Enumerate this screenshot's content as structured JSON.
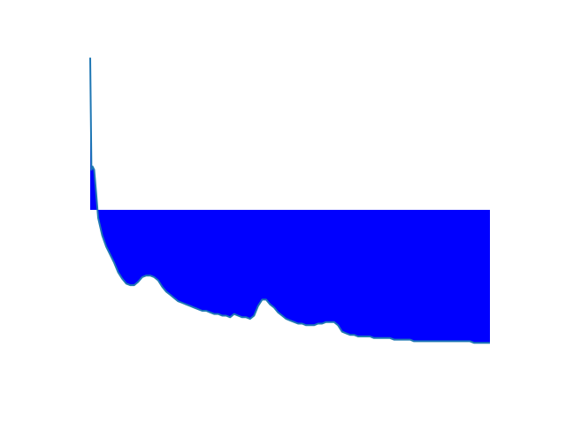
{
  "chart_data": {
    "type": "area",
    "title": "",
    "xlabel": "",
    "ylabel": "",
    "axes_visible": false,
    "grid": false,
    "legend": "none",
    "baseline": 0,
    "xlim": [
      0,
      100
    ],
    "ylim": [
      -1.0,
      1.0
    ],
    "fill_color": "#0000ff",
    "line_color": "#1f77b4",
    "x": [
      0,
      0.3,
      0.6,
      1,
      1.5,
      2,
      3,
      4,
      5,
      6,
      7,
      8,
      9,
      10,
      11,
      12,
      13,
      14,
      15,
      16,
      17,
      18,
      19,
      20,
      21,
      22,
      23,
      24,
      25,
      26,
      27,
      28,
      29,
      30,
      31,
      32,
      33,
      34,
      35,
      36,
      37,
      38,
      39,
      40,
      41,
      42,
      43,
      44,
      45,
      46,
      47,
      48,
      49,
      50,
      51,
      52,
      53,
      54,
      55,
      56,
      57,
      58,
      59,
      60,
      61,
      62,
      63,
      64,
      65,
      66,
      67,
      68,
      69,
      70,
      71,
      72,
      73,
      74,
      75,
      76,
      77,
      78,
      79,
      80,
      81,
      82,
      83,
      84,
      85,
      86,
      87,
      88,
      89,
      90,
      91,
      92,
      93,
      94,
      95,
      96,
      97,
      98,
      99,
      100
    ],
    "y": [
      0.95,
      0.25,
      0.27,
      0.25,
      0.1,
      -0.05,
      -0.16,
      -0.23,
      -0.28,
      -0.33,
      -0.39,
      -0.43,
      -0.46,
      -0.47,
      -0.47,
      -0.45,
      -0.42,
      -0.41,
      -0.41,
      -0.42,
      -0.44,
      -0.48,
      -0.51,
      -0.53,
      -0.55,
      -0.57,
      -0.58,
      -0.59,
      -0.6,
      -0.61,
      -0.62,
      -0.63,
      -0.63,
      -0.64,
      -0.65,
      -0.65,
      -0.66,
      -0.66,
      -0.67,
      -0.65,
      -0.66,
      -0.67,
      -0.67,
      -0.68,
      -0.66,
      -0.6,
      -0.56,
      -0.56,
      -0.59,
      -0.61,
      -0.64,
      -0.66,
      -0.68,
      -0.69,
      -0.7,
      -0.71,
      -0.71,
      -0.72,
      -0.72,
      -0.72,
      -0.71,
      -0.71,
      -0.7,
      -0.7,
      -0.7,
      -0.72,
      -0.76,
      -0.77,
      -0.78,
      -0.78,
      -0.79,
      -0.79,
      -0.79,
      -0.79,
      -0.8,
      -0.8,
      -0.8,
      -0.8,
      -0.8,
      -0.81,
      -0.81,
      -0.81,
      -0.81,
      -0.81,
      -0.82,
      -0.82,
      -0.82,
      -0.82,
      -0.82,
      -0.82,
      -0.82,
      -0.82,
      -0.82,
      -0.82,
      -0.82,
      -0.82,
      -0.82,
      -0.82,
      -0.82,
      -0.83,
      -0.83,
      -0.83,
      -0.83,
      -0.83
    ]
  }
}
